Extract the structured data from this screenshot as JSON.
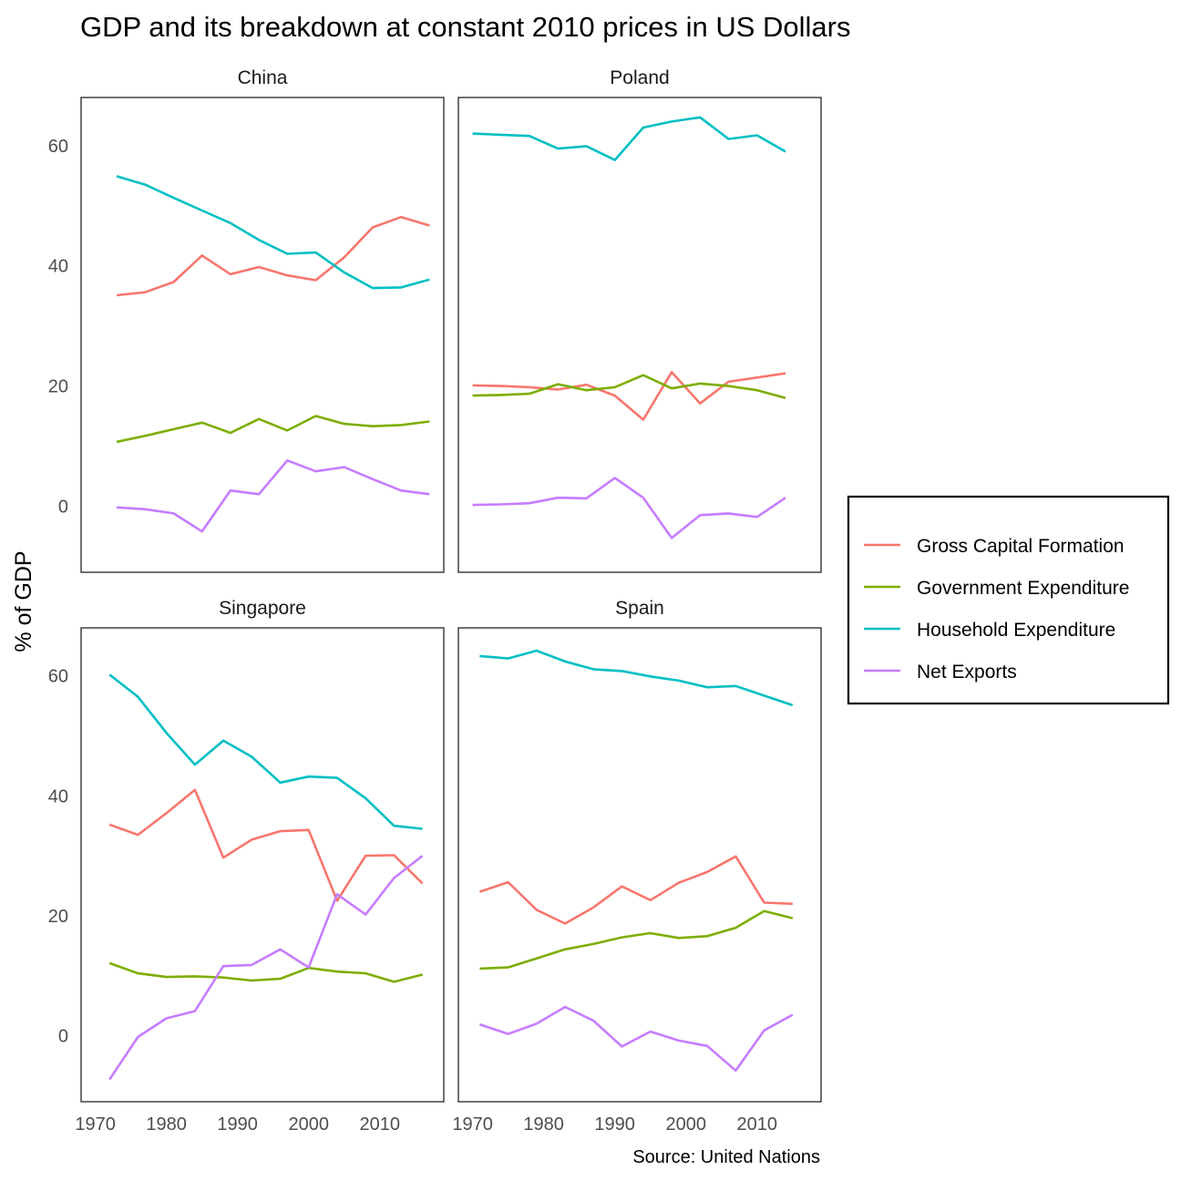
{
  "chart_data": {
    "type": "line",
    "title": "GDP and its breakdown at constant 2010 prices in US Dollars",
    "ylabel": "% of GDP",
    "xlabel": "",
    "caption": "Source: United Nations",
    "xlim": [
      1968,
      2019
    ],
    "ylim": [
      -11,
      68
    ],
    "xticks": [
      1970,
      1980,
      1990,
      2000,
      2010
    ],
    "yticks": [
      0,
      20,
      40,
      60
    ],
    "grid": false,
    "legend_position": "right",
    "colors": {
      "Gross Capital Formation": "#F8766D",
      "Government Expenditure": "#7CAE00",
      "Household Expenditure": "#00BFC4",
      "Net Exports": "#C77CFF"
    },
    "legend": [
      "Gross Capital Formation",
      "Government Expenditure",
      "Household Expenditure",
      "Net Exports"
    ],
    "panels": [
      {
        "name": "China",
        "x": [
          1973,
          1977,
          1981,
          1985,
          1989,
          1993,
          1997,
          2001,
          2005,
          2009,
          2013,
          2017
        ],
        "series": [
          {
            "name": "Gross Capital Formation",
            "values": [
              35.1,
              35.6,
              37.3,
              41.7,
              38.6,
              39.8,
              38.4,
              37.6,
              41.4,
              46.4,
              48.1,
              46.7
            ]
          },
          {
            "name": "Government Expenditure",
            "values": [
              10.7,
              11.7,
              12.8,
              13.9,
              12.2,
              14.5,
              12.6,
              15.0,
              13.7,
              13.3,
              13.5,
              14.1
            ]
          },
          {
            "name": "Household Expenditure",
            "values": [
              54.9,
              53.5,
              51.3,
              49.2,
              47.1,
              44.3,
              42.0,
              42.2,
              38.9,
              36.3,
              36.4,
              37.7
            ]
          },
          {
            "name": "Net Exports",
            "values": [
              -0.2,
              -0.5,
              -1.2,
              -4.2,
              2.6,
              2.0,
              7.6,
              5.8,
              6.5,
              4.5,
              2.6,
              2.0
            ]
          }
        ]
      },
      {
        "name": "Poland",
        "x": [
          1970,
          1974,
          1978,
          1982,
          1986,
          1990,
          1994,
          1998,
          2002,
          2006,
          2010,
          2014
        ],
        "series": [
          {
            "name": "Gross Capital Formation",
            "values": [
              20.1,
              20.0,
              19.8,
              19.4,
              20.2,
              18.4,
              14.4,
              22.3,
              17.1,
              20.7,
              21.4,
              22.1
            ]
          },
          {
            "name": "Government Expenditure",
            "values": [
              18.4,
              18.5,
              18.7,
              20.3,
              19.3,
              19.8,
              21.8,
              19.6,
              20.4,
              20.0,
              19.3,
              18.0
            ]
          },
          {
            "name": "Household Expenditure",
            "values": [
              62.0,
              61.8,
              61.6,
              59.5,
              59.9,
              57.6,
              63.0,
              64.0,
              64.7,
              61.1,
              61.7,
              59.0
            ]
          },
          {
            "name": "Net Exports",
            "values": [
              0.2,
              0.3,
              0.5,
              1.4,
              1.3,
              4.7,
              1.4,
              -5.3,
              -1.5,
              -1.2,
              -1.8,
              1.4
            ]
          }
        ]
      },
      {
        "name": "Singapore",
        "x": [
          1972,
          1976,
          1980,
          1984,
          1988,
          1992,
          1996,
          2000,
          2004,
          2008,
          2012,
          2016
        ],
        "series": [
          {
            "name": "Gross Capital Formation",
            "values": [
              35.2,
              33.5,
              37.1,
              41.0,
              29.7,
              32.7,
              34.1,
              34.3,
              22.5,
              30.0,
              30.1,
              25.4
            ]
          },
          {
            "name": "Government Expenditure",
            "values": [
              12.1,
              10.4,
              9.8,
              9.9,
              9.7,
              9.2,
              9.5,
              11.3,
              10.7,
              10.4,
              9.0,
              10.2
            ]
          },
          {
            "name": "Household Expenditure",
            "values": [
              60.2,
              56.5,
              50.5,
              45.2,
              49.2,
              46.5,
              42.2,
              43.2,
              43.0,
              39.6,
              35.0,
              34.5
            ]
          },
          {
            "name": "Net Exports",
            "values": [
              -7.3,
              -0.2,
              2.9,
              4.1,
              11.6,
              11.8,
              14.4,
              11.4,
              23.6,
              20.2,
              26.3,
              30.0
            ]
          }
        ]
      },
      {
        "name": "Spain",
        "x": [
          1971,
          1975,
          1979,
          1983,
          1987,
          1991,
          1995,
          1999,
          2003,
          2007,
          2011,
          2015
        ],
        "series": [
          {
            "name": "Gross Capital Formation",
            "values": [
              24.0,
              25.6,
              21.0,
              18.7,
              21.4,
              24.9,
              22.6,
              25.5,
              27.3,
              29.9,
              22.2,
              22.0
            ]
          },
          {
            "name": "Government Expenditure",
            "values": [
              11.2,
              11.4,
              12.9,
              14.4,
              15.3,
              16.4,
              17.1,
              16.3,
              16.6,
              18.0,
              20.8,
              19.6
            ]
          },
          {
            "name": "Household Expenditure",
            "values": [
              63.3,
              62.9,
              64.2,
              62.4,
              61.1,
              60.8,
              59.9,
              59.2,
              58.1,
              58.3,
              56.7,
              55.1
            ]
          },
          {
            "name": "Net Exports",
            "values": [
              1.9,
              0.3,
              2.0,
              4.8,
              2.5,
              -1.8,
              0.7,
              -0.8,
              -1.7,
              -5.8,
              0.9,
              3.5
            ]
          }
        ]
      }
    ]
  }
}
